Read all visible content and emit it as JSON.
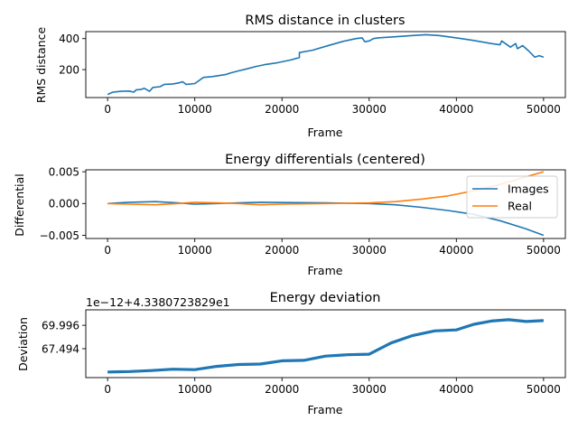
{
  "chart_data": [
    {
      "type": "line",
      "title": "RMS distance in clusters",
      "xlabel": "Frame",
      "ylabel": "RMS distance",
      "xlim": [
        -2500,
        52500
      ],
      "ylim": [
        20,
        445
      ],
      "xticks": [
        0,
        10000,
        20000,
        30000,
        40000,
        50000
      ],
      "yticks": [
        200,
        400
      ],
      "grid": false,
      "series": [
        {
          "name": "",
          "color": "#1f77b4",
          "points": [
            [
              0,
              40
            ],
            [
              600,
              55
            ],
            [
              1500,
              60
            ],
            [
              2500,
              62
            ],
            [
              3000,
              55
            ],
            [
              3300,
              70
            ],
            [
              3800,
              72
            ],
            [
              4200,
              80
            ],
            [
              4800,
              60
            ],
            [
              5200,
              85
            ],
            [
              6000,
              90
            ],
            [
              6500,
              105
            ],
            [
              7500,
              108
            ],
            [
              8200,
              115
            ],
            [
              8600,
              122
            ],
            [
              9000,
              105
            ],
            [
              10000,
              110
            ],
            [
              11000,
              150
            ],
            [
              12000,
              155
            ],
            [
              13500,
              168
            ],
            [
              14200,
              180
            ],
            [
              15000,
              192
            ],
            [
              16000,
              205
            ],
            [
              17000,
              220
            ],
            [
              18000,
              232
            ],
            [
              19500,
              245
            ],
            [
              21000,
              262
            ],
            [
              22000,
              278
            ],
            [
              22000,
              310
            ],
            [
              23500,
              325
            ],
            [
              25000,
              350
            ],
            [
              27000,
              382
            ],
            [
              28500,
              400
            ],
            [
              29200,
              405
            ],
            [
              29500,
              380
            ],
            [
              30000,
              385
            ],
            [
              30500,
              400
            ],
            [
              31000,
              405
            ],
            [
              33000,
              412
            ],
            [
              35000,
              420
            ],
            [
              36500,
              425
            ],
            [
              38000,
              420
            ],
            [
              40000,
              405
            ],
            [
              42000,
              388
            ],
            [
              44000,
              368
            ],
            [
              45000,
              360
            ],
            [
              45200,
              385
            ],
            [
              46200,
              345
            ],
            [
              46800,
              368
            ],
            [
              47000,
              335
            ],
            [
              47600,
              355
            ],
            [
              48300,
              320
            ],
            [
              49000,
              280
            ],
            [
              49500,
              290
            ],
            [
              50000,
              280
            ]
          ]
        }
      ]
    },
    {
      "type": "line",
      "title": "Energy differentials (centered)",
      "xlabel": "Frame",
      "ylabel": "Differential",
      "xlim": [
        -2500,
        52500
      ],
      "ylim": [
        -0.0055,
        0.0053
      ],
      "xticks": [
        0,
        10000,
        20000,
        30000,
        40000,
        50000
      ],
      "yticks": [
        -0.005,
        0.0,
        0.005
      ],
      "ytick_labels": [
        "−0.005",
        "0.000",
        "0.005"
      ],
      "grid": false,
      "legend": "upper right",
      "series": [
        {
          "name": "Images",
          "color": "#1f77b4",
          "points": [
            [
              0,
              0
            ],
            [
              2500,
              0.0002
            ],
            [
              5500,
              0.0003
            ],
            [
              8000,
              0.0001
            ],
            [
              10000,
              -0.0001
            ],
            [
              12500,
              0.0
            ],
            [
              15000,
              0.0001
            ],
            [
              17500,
              0.0002
            ],
            [
              20000,
              0.00015
            ],
            [
              25000,
              0.0001
            ],
            [
              30000,
              0.0
            ],
            [
              33000,
              -0.0002
            ],
            [
              36000,
              -0.0006
            ],
            [
              39000,
              -0.0011
            ],
            [
              42000,
              -0.0017
            ],
            [
              45000,
              -0.0027
            ],
            [
              48000,
              -0.004
            ],
            [
              50000,
              -0.005
            ]
          ]
        },
        {
          "name": "Real",
          "color": "#ff7f0e",
          "points": [
            [
              0,
              0
            ],
            [
              2500,
              -0.0001
            ],
            [
              5500,
              -0.0002
            ],
            [
              8000,
              0.0
            ],
            [
              10000,
              0.0002
            ],
            [
              12500,
              0.0001
            ],
            [
              15000,
              0.0
            ],
            [
              17500,
              -0.0002
            ],
            [
              20000,
              -0.0001
            ],
            [
              25000,
              0.0
            ],
            [
              30000,
              0.0001
            ],
            [
              33000,
              0.0003
            ],
            [
              36000,
              0.0007
            ],
            [
              39000,
              0.0012
            ],
            [
              42000,
              0.002
            ],
            [
              45000,
              0.003
            ],
            [
              48000,
              0.0042
            ],
            [
              50000,
              0.005
            ]
          ]
        }
      ]
    },
    {
      "type": "line",
      "title": "Energy deviation",
      "xlabel": "Frame",
      "ylabel": "Deviation",
      "offset_text": "1e−12+4.3380723829e1",
      "xlim": [
        -2500,
        52500
      ],
      "ylim": [
        64.4,
        71.65
      ],
      "xticks": [
        0,
        10000,
        20000,
        30000,
        40000,
        50000
      ],
      "yticks": [
        67.494,
        69.996
      ],
      "ytick_labels": [
        "67.494",
        "69.996"
      ],
      "grid": false,
      "series": [
        {
          "name": "",
          "color": "#1f77b4",
          "points": [
            [
              0,
              65.0
            ],
            [
              2500,
              65.05
            ],
            [
              5000,
              65.15
            ],
            [
              7500,
              65.3
            ],
            [
              10000,
              65.25
            ],
            [
              12500,
              65.6
            ],
            [
              15000,
              65.8
            ],
            [
              17500,
              65.85
            ],
            [
              20000,
              66.2
            ],
            [
              22500,
              66.25
            ],
            [
              25000,
              66.7
            ],
            [
              27500,
              66.85
            ],
            [
              30000,
              66.9
            ],
            [
              32500,
              68.1
            ],
            [
              35000,
              68.9
            ],
            [
              37500,
              69.4
            ],
            [
              40000,
              69.5
            ],
            [
              42000,
              70.1
            ],
            [
              44000,
              70.45
            ],
            [
              46000,
              70.6
            ],
            [
              48000,
              70.4
            ],
            [
              50000,
              70.5
            ]
          ]
        }
      ]
    }
  ]
}
